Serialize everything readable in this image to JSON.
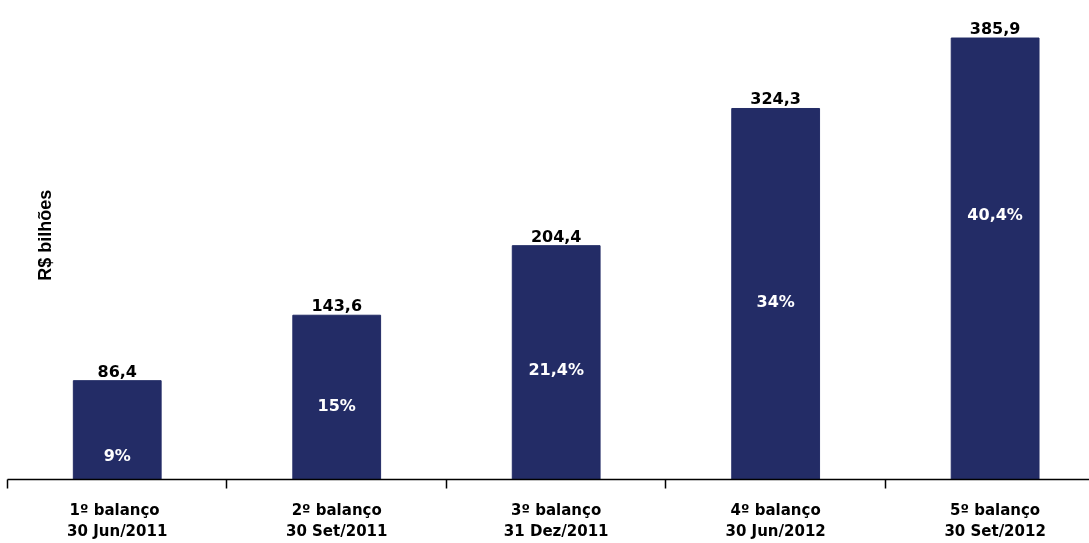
{
  "chart_data": {
    "type": "bar",
    "ylabel": "R$ bilhões",
    "categories": [
      "1º  balanço\n30 Jun/2011",
      "2º balanço\n30 Set/2011",
      "3º balanço\n31 Dez/2011",
      "4º balanço\n30 Jun/2012",
      "5º balanço\n30 Set/2012"
    ],
    "values": [
      86.4,
      143.6,
      204.4,
      324.3,
      385.9
    ],
    "color": "#232c66",
    "value_labels": [
      "86,4",
      "143,6",
      "204,4",
      "324,3",
      "385,9"
    ],
    "tick_labels": "x",
    "annotations": [
      "9%",
      "15%",
      "21,4%",
      "34%",
      "40,4%"
    ]
  }
}
